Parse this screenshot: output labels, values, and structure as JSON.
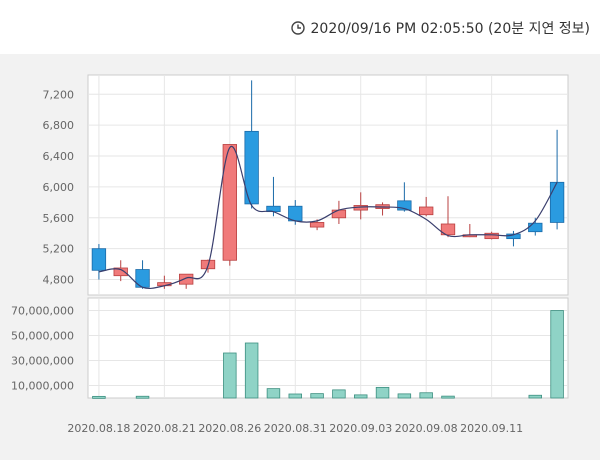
{
  "header": {
    "timestamp": "2020/09/16 PM 02:05:50 (20분 지연 정보)",
    "icon": "clock-icon"
  },
  "colors": {
    "up": "#f07a7a",
    "up_stroke": "#b94040",
    "down": "#2a9be0",
    "down_stroke": "#1a6aa8",
    "volume": "#8fd3c6",
    "volume_stroke": "#3c8f80",
    "line": "#3a3f6e"
  },
  "chart_data": [
    {
      "type": "candlestick",
      "x": [
        "2020.08.18",
        "2020.08.19",
        "2020.08.20",
        "2020.08.21",
        "2020.08.24",
        "2020.08.25",
        "2020.08.26",
        "2020.08.27",
        "2020.08.28",
        "2020.08.31",
        "2020.09.01",
        "2020.09.02",
        "2020.09.03",
        "2020.09.04",
        "2020.09.07",
        "2020.09.08",
        "2020.09.09",
        "2020.09.10",
        "2020.09.11",
        "2020.09.14",
        "2020.09.15",
        "2020.09.16"
      ],
      "open": [
        5200,
        4850,
        4930,
        4720,
        4740,
        4940,
        5050,
        6720,
        5750,
        5750,
        5480,
        5600,
        5700,
        5720,
        5820,
        5640,
        5380,
        5380,
        5330,
        5390,
        5530,
        6060
      ],
      "high": [
        5260,
        5050,
        5050,
        4850,
        4850,
        5060,
        6550,
        7380,
        6130,
        5830,
        5580,
        5820,
        5930,
        5800,
        6060,
        5870,
        5880,
        5520,
        5420,
        5430,
        5600,
        6740
      ],
      "low": [
        4800,
        4780,
        4680,
        4680,
        4680,
        4890,
        4980,
        5720,
        5620,
        5510,
        5440,
        5520,
        5580,
        5630,
        5680,
        5620,
        5350,
        5350,
        5320,
        5230,
        5370,
        5450
      ],
      "close": [
        4920,
        4950,
        4700,
        4760,
        4870,
        5050,
        6550,
        5780,
        5680,
        5560,
        5540,
        5700,
        5760,
        5770,
        5700,
        5740,
        5520,
        5380,
        5400,
        5330,
        5420,
        5540
      ],
      "line": [
        4900,
        4930,
        4700,
        4720,
        4820,
        4980,
        6510,
        5760,
        5680,
        5560,
        5560,
        5700,
        5740,
        5740,
        5720,
        5580,
        5370,
        5380,
        5380,
        5380,
        5560,
        6060
      ],
      "y_ticks": [
        4800,
        5200,
        5600,
        6000,
        6400,
        6800,
        7200
      ],
      "y_tick_labels": [
        "4,800",
        "5,200",
        "5,600",
        "6,000",
        "6,400",
        "6,800",
        "7,200"
      ],
      "ylim": [
        4600,
        7450
      ]
    },
    {
      "type": "bar",
      "x": [
        "2020.08.18",
        "2020.08.19",
        "2020.08.20",
        "2020.08.21",
        "2020.08.24",
        "2020.08.25",
        "2020.08.26",
        "2020.08.27",
        "2020.08.28",
        "2020.08.31",
        "2020.09.01",
        "2020.09.02",
        "2020.09.03",
        "2020.09.04",
        "2020.09.07",
        "2020.09.08",
        "2020.09.09",
        "2020.09.10",
        "2020.09.11",
        "2020.09.14",
        "2020.09.15",
        "2020.09.16"
      ],
      "values": [
        1300000,
        0,
        1400000,
        0,
        0,
        0,
        36000000,
        44000000,
        7500000,
        3200000,
        3500000,
        6500000,
        2500000,
        8500000,
        3300000,
        4200000,
        1500000,
        0,
        0,
        0,
        2200000,
        70000000
      ],
      "y_ticks": [
        10000000,
        30000000,
        50000000,
        70000000
      ],
      "y_tick_labels": [
        "10,000,000",
        "30,000,000",
        "50,000,000",
        "70,000,000"
      ],
      "ylim": [
        0,
        80000000
      ]
    }
  ],
  "x_axis": {
    "tick_labels": [
      "2020.08.18",
      "2020.08.21",
      "2020.08.26",
      "2020.08.31",
      "2020.09.03",
      "2020.09.08",
      "2020.09.11"
    ],
    "tick_indices": [
      0,
      3,
      6,
      9,
      12,
      15,
      18
    ]
  }
}
